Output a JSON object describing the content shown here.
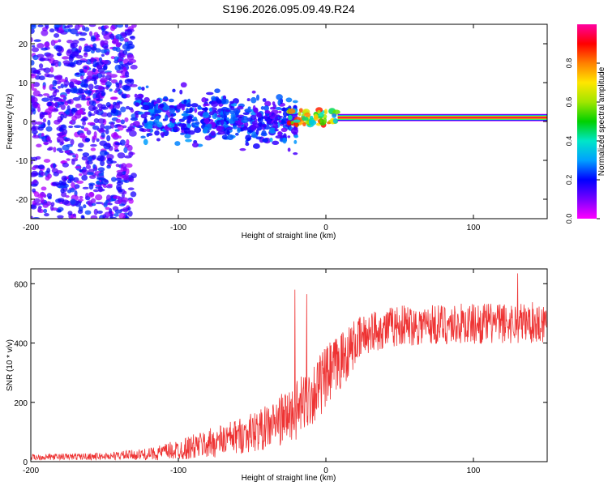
{
  "page_title": "S196.2026.095.09.49.R24",
  "chart_data": [
    {
      "type": "heatmap",
      "title": "S196.2026.095.09.49.R24",
      "xlabel": "Height of straight line (km)",
      "ylabel": "Frequency (Hz)",
      "xlim": [
        -200,
        150
      ],
      "ylim": [
        -25,
        25
      ],
      "xticks": [
        -200,
        -100,
        0,
        100
      ],
      "yticks": [
        -20,
        -10,
        0,
        10,
        20
      ],
      "colorbar": {
        "label": "Normalized spectral amplitude",
        "range": [
          0,
          1
        ],
        "ticks": [
          0.0,
          0.2,
          0.4,
          0.6,
          0.8
        ]
      },
      "regions": [
        {
          "name": "diffuse noise",
          "x_range": [
            -200,
            -130
          ],
          "freq_range": [
            -25,
            25
          ],
          "amplitude_range": [
            0.05,
            0.25
          ]
        },
        {
          "name": "scattered blobs",
          "x_range": [
            -130,
            -20
          ],
          "freq_range": [
            -8,
            12
          ],
          "amplitude_range": [
            0.1,
            0.3
          ]
        },
        {
          "name": "emerging tone",
          "x_range": [
            -25,
            8
          ],
          "freq_range": [
            -1,
            3
          ],
          "amplitude_range": [
            0.3,
            0.9
          ]
        },
        {
          "name": "stable tone",
          "x_range": [
            8,
            150
          ],
          "center_freq": 1,
          "amplitude": 1.0
        }
      ]
    },
    {
      "type": "line",
      "xlabel": "Height of straight line (km)",
      "ylabel": "SNR (10 * v/v)",
      "xlim": [
        -200,
        150
      ],
      "ylim": [
        0,
        650
      ],
      "xticks": [
        -200,
        -100,
        0,
        100
      ],
      "yticks": [
        0,
        200,
        400,
        600
      ],
      "series": [
        {
          "name": "SNR",
          "color": "#ee3333",
          "envelope": {
            "x": [
              -200,
              -150,
              -120,
              -100,
              -80,
              -60,
              -40,
              -20,
              0,
              10,
              20,
              30,
              50,
              100,
              150
            ],
            "mean": [
              15,
              18,
              25,
              40,
              60,
              85,
              115,
              170,
              280,
              340,
              400,
              440,
              460,
              465,
              470
            ],
            "amplitude": [
              10,
              12,
              20,
              35,
              50,
              60,
              75,
              100,
              110,
              100,
              80,
              70,
              70,
              70,
              70
            ]
          },
          "spikes": [
            {
              "x": -21,
              "y": 580
            },
            {
              "x": -13,
              "y": 565
            },
            {
              "x": 130,
              "y": 635
            }
          ]
        }
      ]
    }
  ],
  "colors": {
    "line": "#ee3333",
    "colormap": [
      "#ff00ff",
      "#7700ff",
      "#0000ff",
      "#00a0ff",
      "#00e6c8",
      "#00d000",
      "#a0e600",
      "#ffe600",
      "#ff8000",
      "#ff0000",
      "#ff00a0"
    ]
  }
}
